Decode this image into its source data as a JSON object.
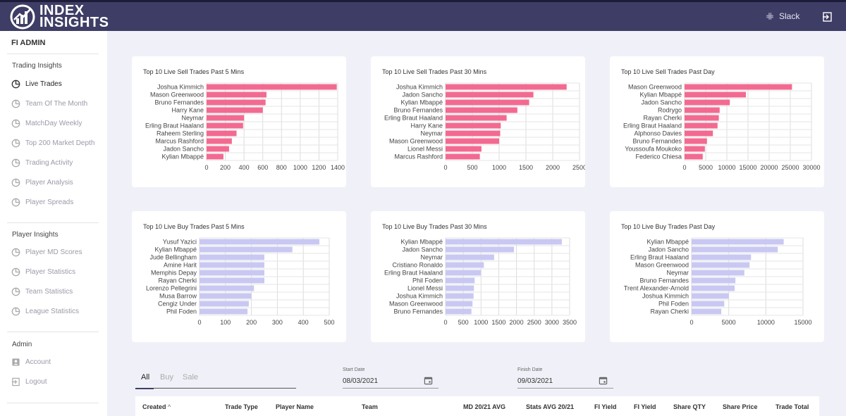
{
  "header": {
    "logo_line1": "INDEX",
    "logo_line2": "INSIGHTS",
    "slack_label": "Slack",
    "icons": {
      "slack": "slack-icon",
      "logout": "logout-icon"
    }
  },
  "sidebar": {
    "title": "FI ADMIN",
    "sections": [
      {
        "label": "Trading Insights",
        "items": [
          {
            "label": "Live Trades",
            "active": true
          },
          {
            "label": "Team Of The Month"
          },
          {
            "label": "MatchDay Weekly"
          },
          {
            "label": "Top 200 Market Depth"
          },
          {
            "label": "Trading Activity"
          },
          {
            "label": "Player Analysis"
          },
          {
            "label": "Player Spreads"
          }
        ]
      },
      {
        "label": "Player Insights",
        "items": [
          {
            "label": "Player MD Scores"
          },
          {
            "label": "Player Statistics"
          },
          {
            "label": "Team Statistics"
          },
          {
            "label": "League Statistics"
          }
        ]
      },
      {
        "label": "Admin",
        "items": [
          {
            "label": "Account"
          },
          {
            "label": "Logout"
          }
        ]
      }
    ]
  },
  "colors": {
    "sell": "#f36a91",
    "buy": "#c9c8f3",
    "header": "#3e3d65"
  },
  "chart_data": [
    {
      "type": "bar",
      "orientation": "horizontal",
      "title": "Top 10 Live Sell Trades Past 5 Mins",
      "categories": [
        "Joshua Kimmich",
        "Mason Greenwood",
        "Bruno Fernandes",
        "Harry Kane",
        "Neymar",
        "Erling Braut Haaland",
        "Raheem Sterling",
        "Marcus Rashford",
        "Jadon Sancho",
        "Kylian Mbappé"
      ],
      "values": [
        1390,
        640,
        630,
        600,
        400,
        390,
        320,
        270,
        240,
        180
      ],
      "xlim": [
        0,
        1400
      ],
      "ticks": [
        0,
        200,
        400,
        600,
        800,
        1000,
        1200,
        1400
      ],
      "color": "sell"
    },
    {
      "type": "bar",
      "orientation": "horizontal",
      "title": "Top 10 Live Sell Trades Past 30 Mins",
      "categories": [
        "Joshua Kimmich",
        "Jadon Sancho",
        "Kylian Mbappé",
        "Bruno Fernandes",
        "Erling Braut Haaland",
        "Harry Kane",
        "Neymar",
        "Mason Greenwood",
        "Lionel Messi",
        "Marcus Rashford"
      ],
      "values": [
        2260,
        1640,
        1560,
        1340,
        1140,
        1030,
        1020,
        1000,
        670,
        640
      ],
      "xlim": [
        0,
        2500
      ],
      "ticks": [
        0,
        500,
        1000,
        1500,
        2000,
        2500
      ],
      "color": "sell"
    },
    {
      "type": "bar",
      "orientation": "horizontal",
      "title": "Top 10 Live Sell Trades Past Day",
      "categories": [
        "Mason Greenwood",
        "Kylian Mbappé",
        "Jadon Sancho",
        "Rodrygo",
        "Rayan Cherki",
        "Erling Braut Haaland",
        "Alphonso Davies",
        "Bruno Fernandes",
        "Youssoufa Moukoko",
        "Federico Chiesa"
      ],
      "values": [
        25400,
        14500,
        10700,
        8300,
        8100,
        7800,
        6700,
        5300,
        4800,
        4300
      ],
      "xlim": [
        0,
        30000
      ],
      "ticks": [
        0,
        5000,
        10000,
        15000,
        20000,
        25000,
        30000
      ],
      "color": "sell"
    },
    {
      "type": "bar",
      "orientation": "horizontal",
      "title": "Top 10 Live Buy Trades Past 5 Mins",
      "categories": [
        "Yusuf Yazici",
        "Kylian Mbappé",
        "Jude Bellingham",
        "Amine Harit",
        "Memphis Depay",
        "Rayan Cherki",
        "Lorenzo Pellegrini",
        "Musa Barrow",
        "Cengiz Under",
        "Phil Foden"
      ],
      "values": [
        462,
        358,
        250,
        250,
        250,
        250,
        210,
        200,
        190,
        185
      ],
      "xlim": [
        0,
        500
      ],
      "ticks": [
        0,
        100,
        200,
        300,
        400,
        500
      ],
      "color": "buy"
    },
    {
      "type": "bar",
      "orientation": "horizontal",
      "title": "Top 10 Live Buy Trades Past 30 Mins",
      "categories": [
        "Kylian Mbappé",
        "Jadon Sancho",
        "Neymar",
        "Cristiano Ronaldo",
        "Erling Braut Haaland",
        "Phil Foden",
        "Lionel Messi",
        "Joshua Kimmich",
        "Mason Greenwood",
        "Bruno Fernandes"
      ],
      "values": [
        3280,
        1930,
        1370,
        1080,
        1000,
        820,
        800,
        790,
        760,
        730
      ],
      "xlim": [
        0,
        3500
      ],
      "ticks": [
        0,
        500,
        1000,
        1500,
        2000,
        2500,
        3000,
        3500
      ],
      "color": "buy"
    },
    {
      "type": "bar",
      "orientation": "horizontal",
      "title": "Top 10 Live Buy Trades Past Day",
      "categories": [
        "Kylian Mbappé",
        "Jadon Sancho",
        "Erling Braut Haaland",
        "Mason Greenwood",
        "Neymar",
        "Bruno Fernandes",
        "Trent Alexander-Arnold",
        "Joshua Kimmich",
        "Phil Foden",
        "Rayan Cherki"
      ],
      "values": [
        12400,
        11600,
        8000,
        7800,
        7100,
        5900,
        5800,
        5000,
        4400,
        4000
      ],
      "xlim": [
        0,
        15000
      ],
      "ticks": [
        0,
        5000,
        10000,
        15000
      ],
      "color": "buy"
    }
  ],
  "filters": {
    "tabs": [
      "All",
      "Buy",
      "Sale"
    ],
    "start_date_label": "Start Date",
    "start_date": "08/03/2021",
    "finish_date_label": "Finish Date",
    "finish_date": "09/03/2021"
  },
  "table": {
    "columns": [
      "Created",
      "Trade Type",
      "Player Name",
      "Team",
      "MD 20/21 AVG",
      "Stats AVG 20/21",
      "FI Yield",
      "FI Yield",
      "Share QTY",
      "Share Price",
      "Trade Total"
    ],
    "sort_indicator": "^"
  }
}
